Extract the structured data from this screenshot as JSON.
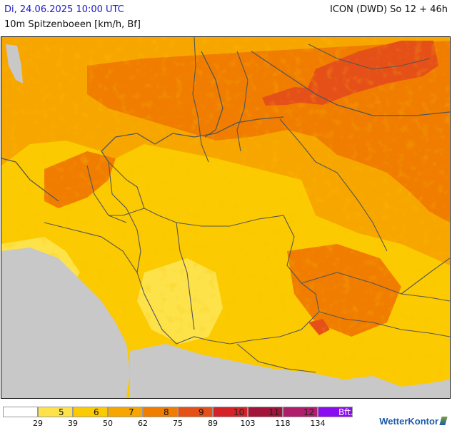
{
  "header": {
    "datetime": "Di, 24.06.2025 10:00 UTC",
    "model_run": "ICON (DWD) So 12 + 46h",
    "parameter": "10m Spitzenboeen [km/h, Bf]"
  },
  "map": {
    "region": "Germany and neighbouring countries",
    "background_outside_domain": "#c8c8c8",
    "dominant_classes": [
      "6",
      "7",
      "8"
    ],
    "strongest_area": "northeast (southern Sweden / Baltic), class 9"
  },
  "legend": {
    "classes": [
      {
        "label": "",
        "color": "#ffffff"
      },
      {
        "label": "5",
        "color": "#fde24a"
      },
      {
        "label": "6",
        "color": "#fcca00"
      },
      {
        "label": "7",
        "color": "#f7a600"
      },
      {
        "label": "8",
        "color": "#f07d00"
      },
      {
        "label": "9",
        "color": "#e55019"
      },
      {
        "label": "10",
        "color": "#d42228"
      },
      {
        "label": "11",
        "color": "#a3143a"
      },
      {
        "label": "12",
        "color": "#b11d6d"
      },
      {
        "label": "Bft.",
        "color": "#8a0cf0"
      }
    ],
    "ticks": [
      "29",
      "39",
      "50",
      "62",
      "75",
      "89",
      "103",
      "118",
      "134"
    ]
  },
  "brand": {
    "name": "WetterKontor"
  }
}
